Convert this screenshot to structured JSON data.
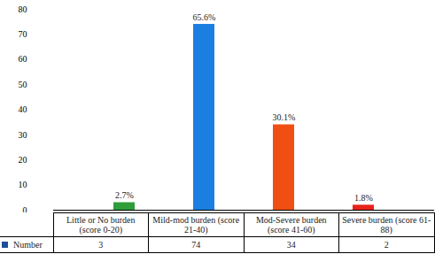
{
  "chart_data": {
    "type": "bar",
    "categories": [
      "Little or No burden (score 0-20)",
      "Mild-mod burden (score 21-40)",
      "Mod-Severe burden (score 41-60)",
      "Severe burden (score 61-88)"
    ],
    "series": [
      {
        "name": "Number",
        "color": "#1f4e9c",
        "values": [
          3,
          74,
          34,
          2
        ],
        "colors": [
          "#2e9e3a",
          "#1a7fe0",
          "#f04e12",
          "#e8231c"
        ],
        "percent_labels": [
          "2.7%",
          "65.6%",
          "30.1%",
          "1.8%"
        ]
      }
    ],
    "ylim": [
      0,
      80
    ],
    "yticks": [
      0,
      10,
      20,
      30,
      40,
      50,
      60,
      70,
      80
    ],
    "grid": false
  }
}
